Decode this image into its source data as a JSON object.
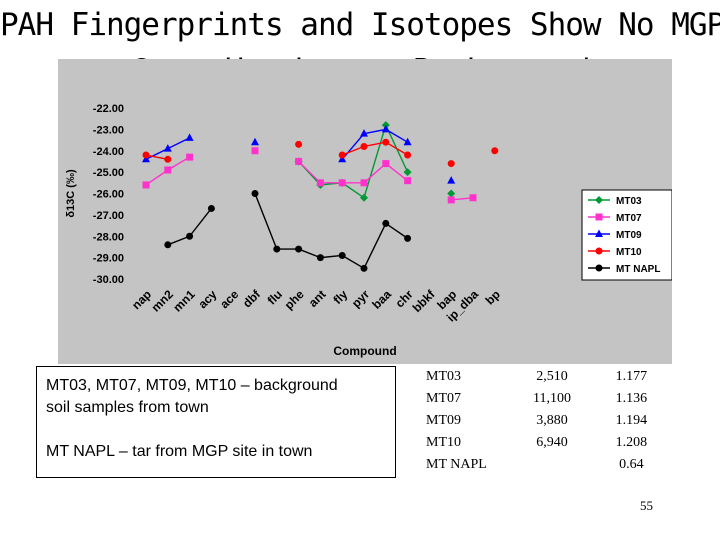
{
  "title": {
    "line1": "PAH Fingerprints and Isotopes Show No MGP",
    "line2": "Contribution to Background"
  },
  "notes": {
    "line1": "MT03, MT07, MT09, MT10 – background",
    "line2": "soil samples from town",
    "line3": "MT NAPL – tar from MGP site in town"
  },
  "table": {
    "rows": [
      {
        "sample": "MT03",
        "value": "2,510",
        "ratio": "1.177"
      },
      {
        "sample": "MT07",
        "value": "11,100",
        "ratio": "1.136"
      },
      {
        "sample": "MT09",
        "value": "3,880",
        "ratio": "1.194"
      },
      {
        "sample": "MT10",
        "value": "6,940",
        "ratio": "1.208"
      },
      {
        "sample": "MT NAPL",
        "value": "",
        "ratio": "0.64"
      }
    ]
  },
  "page_number": "55",
  "chart_data": {
    "type": "line",
    "xlabel": "Compound",
    "ylabel": "δ13C (‰)",
    "ylim": [
      -30,
      -22
    ],
    "yticks": [
      "-22.00",
      "-23.00",
      "-24.00",
      "-25.00",
      "-26.00",
      "-27.00",
      "-28.00",
      "-29.00",
      "-30.00"
    ],
    "categories": [
      "nap",
      "mn2",
      "mn1",
      "acy",
      "ace",
      "dbf",
      "flu",
      "phe",
      "ant",
      "fly",
      "pyr",
      "baa",
      "chr",
      "bbkf",
      "bap",
      "ip_dba",
      "bp"
    ],
    "legend_position": "right",
    "grid": false,
    "series": [
      {
        "name": "MT03",
        "color": "#009933",
        "marker": "diamond",
        "values": [
          null,
          null,
          null,
          null,
          null,
          null,
          null,
          -24.5,
          -25.6,
          -25.5,
          -26.2,
          -22.8,
          -25.0,
          null,
          -26.0,
          null,
          null
        ]
      },
      {
        "name": "MT07",
        "color": "#ff33cc",
        "marker": "square",
        "values": [
          -25.6,
          -24.9,
          -24.3,
          null,
          null,
          -24.0,
          null,
          -24.5,
          -25.5,
          -25.5,
          -25.5,
          -24.6,
          -25.4,
          null,
          -26.3,
          -26.2,
          null
        ]
      },
      {
        "name": "MT09",
        "color": "#0000ff",
        "marker": "triangle",
        "values": [
          -24.4,
          -23.9,
          -23.4,
          null,
          null,
          -23.6,
          null,
          null,
          null,
          -24.4,
          -23.2,
          -23.0,
          -23.6,
          null,
          -25.4,
          null,
          null
        ]
      },
      {
        "name": "MT10",
        "color": "#ff0000",
        "marker": "circle",
        "values": [
          -24.2,
          -24.4,
          null,
          null,
          null,
          null,
          null,
          -23.7,
          null,
          -24.2,
          -23.8,
          -23.6,
          -24.2,
          null,
          -24.6,
          null,
          -24.0
        ]
      },
      {
        "name": "MT NAPL",
        "color": "#000000",
        "marker": "circle",
        "values": [
          null,
          -28.4,
          -28.0,
          -26.7,
          null,
          -26.0,
          -28.6,
          -28.6,
          -29.0,
          -28.9,
          -29.5,
          -27.4,
          -28.1,
          null,
          null,
          null,
          null
        ]
      }
    ]
  }
}
